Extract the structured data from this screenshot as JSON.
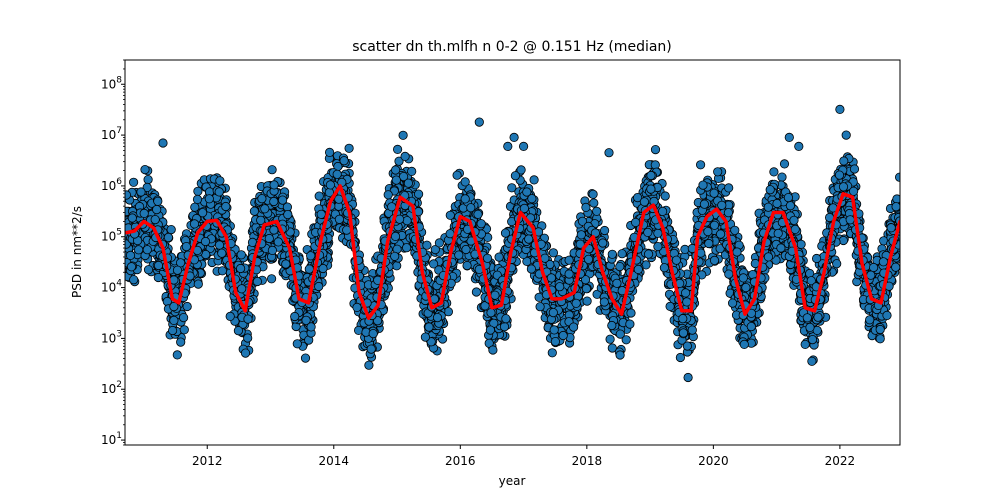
{
  "chart_data": {
    "type": "scatter",
    "title": "scatter dn th.mlfh n 0-2 @ 0.151 Hz (median)",
    "xlabel": "year",
    "ylabel": "PSD in nm**2/s",
    "xlim": [
      2010.7,
      2022.95
    ],
    "ylim": [
      8,
      300000000
    ],
    "yscale": "log",
    "x_ticks": [
      {
        "value": 2012,
        "label": "2012"
      },
      {
        "value": 2014,
        "label": "2014"
      },
      {
        "value": 2016,
        "label": "2016"
      },
      {
        "value": 2018,
        "label": "2018"
      },
      {
        "value": 2020,
        "label": "2020"
      },
      {
        "value": 2022,
        "label": "2022"
      }
    ],
    "y_ticks": [
      {
        "value": 10,
        "base": "10",
        "exp": "1"
      },
      {
        "value": 100,
        "base": "10",
        "exp": "2"
      },
      {
        "value": 1000,
        "base": "10",
        "exp": "3"
      },
      {
        "value": 10000,
        "base": "10",
        "exp": "4"
      },
      {
        "value": 100000,
        "base": "10",
        "exp": "5"
      },
      {
        "value": 1000000,
        "base": "10",
        "exp": "6"
      },
      {
        "value": 10000000,
        "base": "10",
        "exp": "7"
      },
      {
        "value": 100000000,
        "base": "10",
        "exp": "8"
      }
    ],
    "grid": false,
    "scatter_color": "#1f77b4",
    "scatter_edge": "#000000",
    "median_color": "#ff0000",
    "median_line": {
      "x": [
        2010.72,
        2010.85,
        2011.0,
        2011.15,
        2011.3,
        2011.45,
        2011.55,
        2011.7,
        2011.85,
        2012.0,
        2012.15,
        2012.3,
        2012.45,
        2012.6,
        2012.75,
        2012.9,
        2013.1,
        2013.3,
        2013.45,
        2013.6,
        2013.8,
        2013.95,
        2014.1,
        2014.25,
        2014.4,
        2014.55,
        2014.7,
        2014.85,
        2015.05,
        2015.25,
        2015.4,
        2015.55,
        2015.7,
        2015.85,
        2016.0,
        2016.15,
        2016.35,
        2016.5,
        2016.65,
        2016.8,
        2016.95,
        2017.15,
        2017.3,
        2017.45,
        2017.6,
        2017.8,
        2017.95,
        2018.1,
        2018.25,
        2018.4,
        2018.55,
        2018.7,
        2018.9,
        2019.05,
        2019.2,
        2019.35,
        2019.5,
        2019.65,
        2019.75,
        2019.9,
        2020.05,
        2020.2,
        2020.35,
        2020.5,
        2020.65,
        2020.8,
        2020.95,
        2021.1,
        2021.3,
        2021.45,
        2021.6,
        2021.75,
        2021.9,
        2022.05,
        2022.2,
        2022.35,
        2022.5,
        2022.65,
        2022.8,
        2022.95
      ],
      "y": [
        120000,
        130000,
        200000,
        150000,
        60000,
        6000,
        5000,
        30000,
        120000,
        200000,
        210000,
        100000,
        8000,
        3500,
        40000,
        170000,
        200000,
        60000,
        6000,
        5000,
        90000,
        500000,
        1000000,
        300000,
        8000,
        2500,
        4500,
        80000,
        600000,
        400000,
        20000,
        4000,
        5000,
        50000,
        250000,
        200000,
        30000,
        4000,
        4500,
        50000,
        300000,
        150000,
        20000,
        6000,
        6000,
        8000,
        60000,
        100000,
        20000,
        6000,
        3000,
        20000,
        300000,
        420000,
        150000,
        20000,
        3500,
        3500,
        100000,
        250000,
        350000,
        200000,
        15000,
        3000,
        6000,
        80000,
        300000,
        300000,
        60000,
        4000,
        3500,
        20000,
        200000,
        700000,
        600000,
        30000,
        6000,
        5000,
        40000,
        200000
      ]
    },
    "outliers": {
      "x": [
        2011.3,
        2016.3,
        2016.75,
        2016.85,
        2017.0,
        2018.35,
        2019.6,
        2021.2,
        2021.35,
        2022.0,
        2022.1
      ],
      "y": [
        7000000,
        18000000,
        6000000,
        9000000,
        6000000,
        4500000,
        170,
        9000000,
        6000000,
        32000000,
        10000000
      ]
    }
  }
}
